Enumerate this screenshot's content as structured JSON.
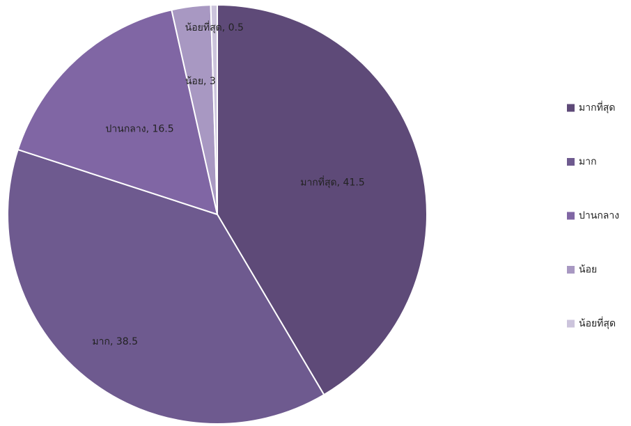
{
  "chart_data": {
    "type": "pie",
    "categories": [
      "มากที่สุด",
      "มาก",
      "ปานกลาง",
      "น้อย",
      "น้อยที่สุด"
    ],
    "values": [
      41.5,
      38.5,
      16.5,
      3,
      0.5
    ],
    "data_labels": [
      "มากที่สุด, 41.5",
      "มาก, 38.5",
      "ปานกลาง, 16.5",
      "น้อย, 3",
      "น้อยที่สุด, 0.5"
    ],
    "colors": [
      "#5e4a78",
      "#6e5a8f",
      "#8066a4",
      "#a898c2",
      "#ccc4dc"
    ],
    "start_angle_deg": 0,
    "direction": "clockwise",
    "legend_position": "right"
  }
}
